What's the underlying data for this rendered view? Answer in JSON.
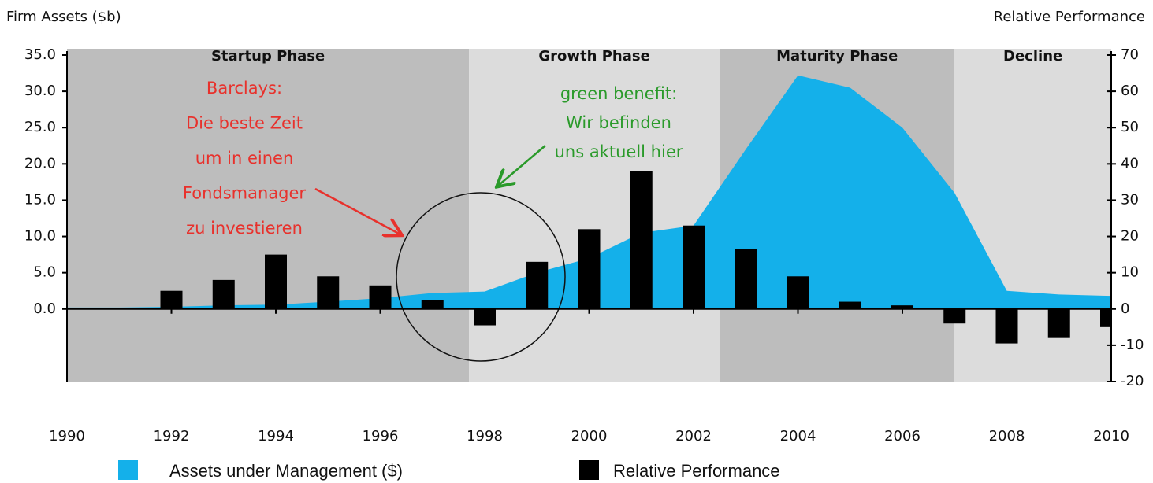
{
  "chart_data": {
    "type": "combo",
    "y_label": "Firm Assets ($b)",
    "y2_label": "Relative Performance",
    "xlim": [
      1990,
      2010
    ],
    "xticks": [
      1990,
      1992,
      1994,
      1996,
      1998,
      2000,
      2002,
      2004,
      2006,
      2008,
      2010
    ],
    "ylim": [
      -10,
      35
    ],
    "yticks": [
      {
        "value": 0,
        "label": "0.0"
      },
      {
        "value": 5,
        "label": "5.0"
      },
      {
        "value": 10,
        "label": "10.0"
      },
      {
        "value": 15,
        "label": "15.0"
      },
      {
        "value": 20,
        "label": "20.0"
      },
      {
        "value": 25,
        "label": "25.0"
      },
      {
        "value": 30,
        "label": "30.0"
      },
      {
        "value": 35,
        "label": "35.0"
      }
    ],
    "y2lim": [
      -20,
      70
    ],
    "y2ticks": [
      -20,
      -10,
      0,
      10,
      20,
      30,
      40,
      50,
      60,
      70
    ],
    "phases": [
      {
        "label": "Startup Phase",
        "start": 1990,
        "end": 1997.7,
        "color": "#bdbdbd"
      },
      {
        "label": "Growth Phase",
        "start": 1997.7,
        "end": 2002.5,
        "color": "#dcdcdc"
      },
      {
        "label": "Maturity Phase",
        "start": 2002.5,
        "end": 2007,
        "color": "#bdbdbd"
      },
      {
        "label": "Decline",
        "start": 2007,
        "end": 2010,
        "color": "#dcdcdc"
      }
    ],
    "x": [
      1990,
      1991,
      1992,
      1993,
      1994,
      1995,
      1996,
      1997,
      1998,
      1999,
      2000,
      2001,
      2002,
      2003,
      2004,
      2005,
      2006,
      2007,
      2008,
      2009,
      2010
    ],
    "series": [
      {
        "name": "Assets under Management ($)",
        "type": "area",
        "color": "#14b0ea",
        "values": [
          0.2,
          0.2,
          0.3,
          0.5,
          0.6,
          1.0,
          1.5,
          2.2,
          2.4,
          5,
          7,
          10.5,
          11.5,
          22,
          32.2,
          30.5,
          25,
          16,
          2.5,
          2,
          1.8
        ]
      },
      {
        "name": "Relative Performance",
        "type": "bar",
        "axis": "y2",
        "color": "#000000",
        "values": [
          null,
          null,
          5,
          8,
          15,
          9,
          6.5,
          2.5,
          -4.5,
          13,
          22,
          38,
          23,
          16.5,
          9,
          2,
          1,
          -4,
          -9.5,
          -8,
          -5
        ]
      }
    ],
    "annotations": [
      {
        "color": "#e8312c",
        "lines": [
          "Barclays:",
          "Die beste Zeit",
          "um in einen",
          "Fondsmanager",
          "zu investieren"
        ]
      },
      {
        "color": "#2a9a2a",
        "lines": [
          "green benefit:",
          "Wir befinden",
          "uns aktuell hier"
        ]
      }
    ]
  }
}
